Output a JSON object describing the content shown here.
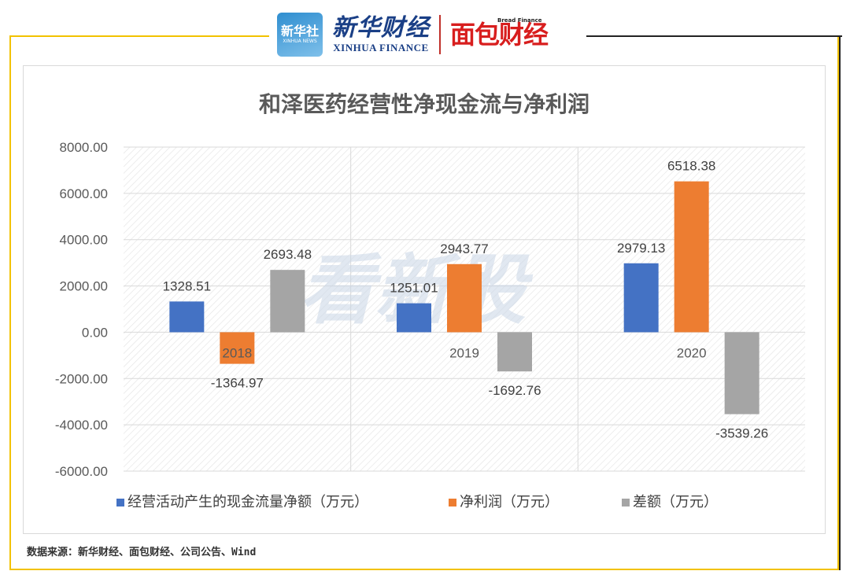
{
  "header": {
    "xinhua_badge_cn": "新华社",
    "xinhua_badge_en": "XINHUA NEWS",
    "xinhua_brand_cn": "新华财经",
    "xinhua_brand_en": "XINHUA FINANCE",
    "bread_small": "Bread Finance",
    "bread_brand_cn": "面包财经"
  },
  "watermark": "看新股",
  "source": "数据来源：新华财经、面包财经、公司公告、Wind",
  "colors": {
    "series1": "#4472c4",
    "series2": "#ed7d31",
    "series3": "#a5a5a5",
    "frame": "#f2c200"
  },
  "chart_data": {
    "type": "bar",
    "title": "和泽医药经营性净现金流与净利润",
    "categories": [
      "2018",
      "2019",
      "2020"
    ],
    "series": [
      {
        "name": "经营活动产生的现金流量净额（万元）",
        "values": [
          1328.51,
          1251.01,
          2979.13
        ],
        "labels": [
          "1328.51",
          "1251.01",
          "2979.13"
        ]
      },
      {
        "name": "净利润（万元）",
        "values": [
          -1364.97,
          2943.77,
          6518.38
        ],
        "labels": [
          "-1364.97",
          "2943.77",
          "6518.38"
        ]
      },
      {
        "name": "差额（万元）",
        "values": [
          2693.48,
          -1692.76,
          -3539.26
        ],
        "labels": [
          "2693.48",
          "-1692.76",
          "-3539.26"
        ]
      }
    ],
    "ylim": [
      -6000,
      8000
    ],
    "yticks": [
      8000,
      6000,
      4000,
      2000,
      0,
      -2000,
      -4000,
      -6000
    ],
    "ytick_labels": [
      "8000.00",
      "6000.00",
      "4000.00",
      "2000.00",
      "0.00",
      "-2000.00",
      "-4000.00",
      "-6000.00"
    ],
    "grid": true,
    "legend_position": "bottom"
  }
}
